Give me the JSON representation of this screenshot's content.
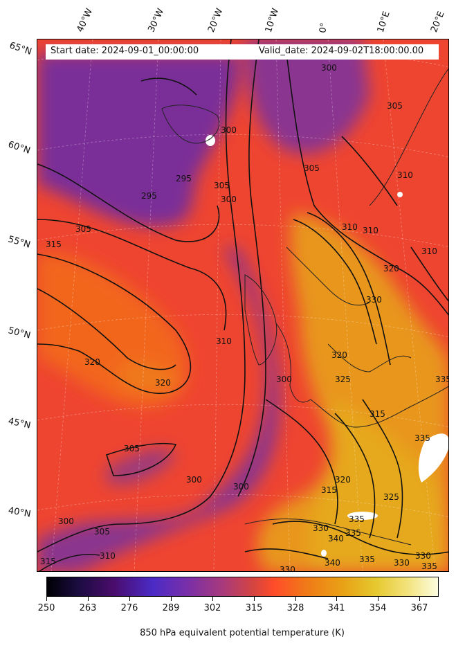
{
  "header": {
    "start_date": "Start date: 2024-09-01_00:00:00",
    "valid_date": "Valid_date: 2024-09-02T18:00:00.00"
  },
  "longitude_labels": [
    "40°W",
    "30°W",
    "20°W",
    "10°W",
    "0°",
    "10°E",
    "20°E"
  ],
  "latitude_labels": [
    "65°N",
    "60°N",
    "55°N",
    "50°N",
    "45°N",
    "40°N"
  ],
  "contour_labels": [
    "300",
    "305",
    "310",
    "315",
    "320",
    "325",
    "330",
    "335",
    "340",
    "295"
  ],
  "colorbar": {
    "ticks": [
      "250",
      "263",
      "276",
      "289",
      "302",
      "315",
      "328",
      "341",
      "354",
      "367"
    ],
    "range": [
      250,
      373
    ],
    "title": "850 hPa equivalent potential temperature (K)",
    "colormap": [
      "#000004",
      "#4b2bc6",
      "#7a2fa8",
      "#ff4b2a",
      "#f07818",
      "#e8a316",
      "#fcfde0"
    ]
  },
  "colors": {
    "cool_air": "#7a2e98",
    "mid_air": "#ee4530",
    "warm_air": "#eea21a",
    "contour_line": "#111111",
    "coastline": "#222222",
    "missing_data": "#ffffff"
  }
}
